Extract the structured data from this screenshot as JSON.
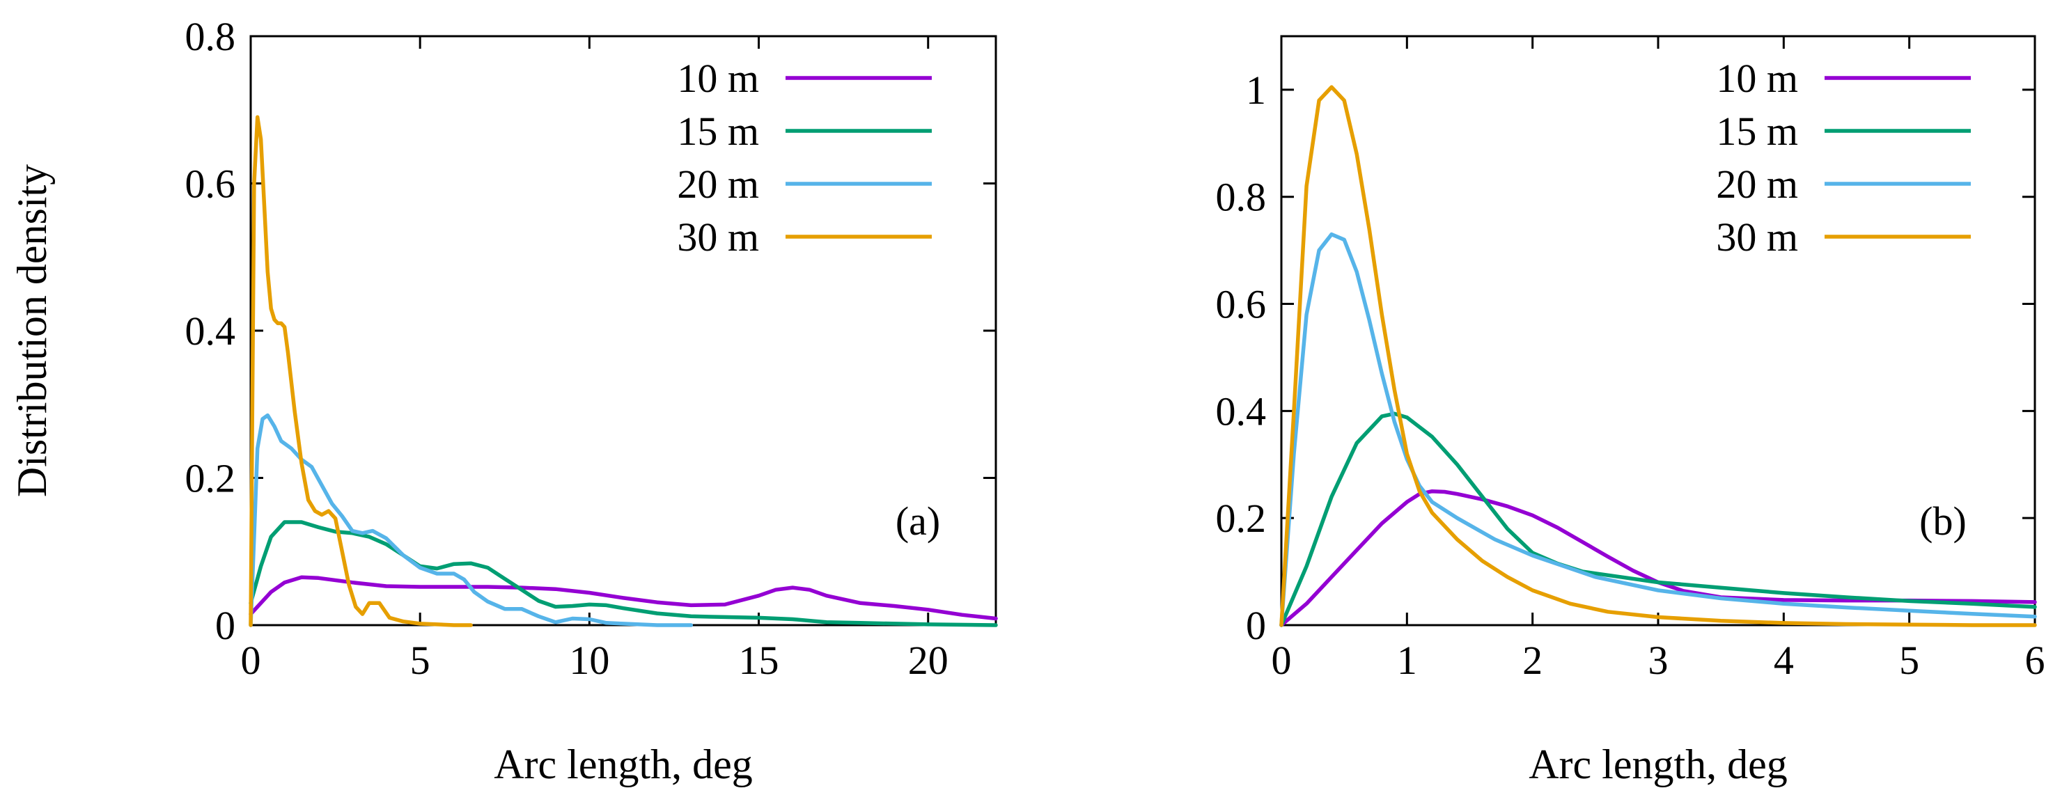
{
  "figure": {
    "ylabel": "Distribution density"
  },
  "colors": {
    "10 m": "#9400d3",
    "15 m": "#009e73",
    "20 m": "#56b4e9",
    "30 m": "#e69f00"
  },
  "chart_data": [
    {
      "type": "line",
      "panel": "(a)",
      "xlabel": "Arc length, deg",
      "ylabel": "Distribution density",
      "xlim": [
        0,
        22
      ],
      "ylim": [
        0,
        0.8
      ],
      "xticks": [
        0,
        5,
        10,
        15,
        20
      ],
      "yticks": [
        0,
        0.2,
        0.4,
        0.6,
        0.8
      ],
      "xtick_labels": [
        "0",
        "5",
        "10",
        "15",
        "20"
      ],
      "ytick_labels": [
        "0",
        "0.2",
        "0.4",
        "0.6",
        "0.8"
      ],
      "legend_position": "top-right",
      "series": [
        {
          "name": "10 m",
          "color": "#9400d3",
          "x": [
            0,
            0.3,
            0.6,
            1.0,
            1.5,
            2.0,
            3.0,
            4.0,
            5.0,
            6.0,
            7.0,
            8.0,
            9.0,
            10.0,
            11.0,
            12.0,
            13.0,
            14.0,
            15.0,
            15.5,
            16.0,
            16.5,
            17.0,
            18.0,
            19.0,
            20.0,
            21.0,
            22.0
          ],
          "y": [
            0.015,
            0.03,
            0.045,
            0.058,
            0.065,
            0.064,
            0.058,
            0.053,
            0.052,
            0.052,
            0.052,
            0.051,
            0.049,
            0.044,
            0.037,
            0.031,
            0.027,
            0.028,
            0.04,
            0.048,
            0.051,
            0.048,
            0.04,
            0.03,
            0.026,
            0.021,
            0.014,
            0.009
          ]
        },
        {
          "name": "15 m",
          "color": "#009e73",
          "x": [
            0,
            0.3,
            0.6,
            1.0,
            1.5,
            2.0,
            2.5,
            3.0,
            3.5,
            4.0,
            4.5,
            5.0,
            5.5,
            6.0,
            6.5,
            7.0,
            7.5,
            8.0,
            8.5,
            9.0,
            9.5,
            10.0,
            10.5,
            11.0,
            12.0,
            13.0,
            14.0,
            15.0,
            16.0,
            17.0,
            18.0,
            20.0,
            22.0
          ],
          "y": [
            0.03,
            0.08,
            0.12,
            0.14,
            0.14,
            0.133,
            0.127,
            0.125,
            0.12,
            0.11,
            0.095,
            0.08,
            0.077,
            0.083,
            0.084,
            0.078,
            0.063,
            0.048,
            0.033,
            0.025,
            0.026,
            0.028,
            0.027,
            0.023,
            0.016,
            0.012,
            0.011,
            0.01,
            0.008,
            0.004,
            0.003,
            0.001,
            0.0
          ]
        },
        {
          "name": "20 m",
          "color": "#56b4e9",
          "x": [
            0,
            0.1,
            0.2,
            0.35,
            0.5,
            0.7,
            0.9,
            1.2,
            1.5,
            1.8,
            2.1,
            2.4,
            2.7,
            3.0,
            3.3,
            3.6,
            4.0,
            4.5,
            5.0,
            5.5,
            6.0,
            6.3,
            6.6,
            7.0,
            7.5,
            8.0,
            8.5,
            9.0,
            9.5,
            10.0,
            10.5,
            11.0,
            12.0,
            13.0
          ],
          "y": [
            0.0,
            0.12,
            0.24,
            0.28,
            0.285,
            0.27,
            0.25,
            0.24,
            0.225,
            0.215,
            0.19,
            0.165,
            0.148,
            0.128,
            0.125,
            0.128,
            0.118,
            0.095,
            0.078,
            0.07,
            0.07,
            0.062,
            0.045,
            0.032,
            0.022,
            0.022,
            0.012,
            0.004,
            0.009,
            0.008,
            0.003,
            0.002,
            0.0,
            0.0
          ]
        },
        {
          "name": "30 m",
          "color": "#e69f00",
          "x": [
            0,
            0.05,
            0.1,
            0.2,
            0.3,
            0.4,
            0.5,
            0.6,
            0.7,
            0.8,
            0.9,
            1.0,
            1.1,
            1.3,
            1.5,
            1.7,
            1.9,
            2.1,
            2.3,
            2.5,
            2.7,
            2.9,
            3.1,
            3.3,
            3.5,
            3.8,
            4.1,
            4.5,
            5.0,
            5.5,
            6.0,
            6.5
          ],
          "y": [
            0.0,
            0.3,
            0.6,
            0.69,
            0.66,
            0.57,
            0.48,
            0.43,
            0.415,
            0.41,
            0.41,
            0.405,
            0.37,
            0.29,
            0.22,
            0.17,
            0.155,
            0.15,
            0.155,
            0.145,
            0.1,
            0.055,
            0.025,
            0.015,
            0.03,
            0.03,
            0.01,
            0.005,
            0.002,
            0.001,
            0.0,
            0.0
          ]
        }
      ]
    },
    {
      "type": "line",
      "panel": "(b)",
      "xlabel": "Arc length, deg",
      "ylabel": "",
      "xlim": [
        0,
        6
      ],
      "ylim": [
        0,
        1.1
      ],
      "xticks": [
        0,
        1,
        2,
        3,
        4,
        5,
        6
      ],
      "yticks": [
        0,
        0.2,
        0.4,
        0.6,
        0.8,
        1.0
      ],
      "xtick_labels": [
        "0",
        "1",
        "2",
        "3",
        "4",
        "5",
        "6"
      ],
      "ytick_labels": [
        "0",
        "0.2",
        "0.4",
        "0.6",
        "0.8",
        "1"
      ],
      "legend_position": "top-right",
      "series": [
        {
          "name": "10 m",
          "color": "#9400d3",
          "x": [
            0,
            0.2,
            0.4,
            0.6,
            0.8,
            1.0,
            1.1,
            1.2,
            1.3,
            1.4,
            1.6,
            1.8,
            2.0,
            2.2,
            2.4,
            2.6,
            2.8,
            3.0,
            3.2,
            3.5,
            4.0,
            4.5,
            5.0,
            5.5,
            6.0
          ],
          "y": [
            0.0,
            0.04,
            0.09,
            0.14,
            0.19,
            0.23,
            0.245,
            0.25,
            0.249,
            0.245,
            0.235,
            0.222,
            0.205,
            0.182,
            0.155,
            0.128,
            0.102,
            0.08,
            0.064,
            0.052,
            0.047,
            0.046,
            0.046,
            0.045,
            0.043
          ]
        },
        {
          "name": "15 m",
          "color": "#009e73",
          "x": [
            0,
            0.2,
            0.4,
            0.6,
            0.8,
            0.9,
            1.0,
            1.2,
            1.4,
            1.6,
            1.8,
            2.0,
            2.2,
            2.4,
            2.7,
            3.0,
            3.5,
            4.0,
            4.5,
            5.0,
            5.5,
            6.0
          ],
          "y": [
            0.0,
            0.11,
            0.24,
            0.34,
            0.39,
            0.395,
            0.388,
            0.352,
            0.3,
            0.24,
            0.18,
            0.135,
            0.115,
            0.1,
            0.09,
            0.08,
            0.07,
            0.06,
            0.052,
            0.045,
            0.04,
            0.034
          ]
        },
        {
          "name": "20 m",
          "color": "#56b4e9",
          "x": [
            0,
            0.1,
            0.2,
            0.3,
            0.4,
            0.5,
            0.6,
            0.7,
            0.8,
            0.9,
            1.0,
            1.1,
            1.2,
            1.4,
            1.7,
            2.0,
            2.5,
            3.0,
            3.5,
            4.0,
            4.5,
            5.0,
            5.5,
            6.0
          ],
          "y": [
            0.0,
            0.32,
            0.58,
            0.7,
            0.73,
            0.72,
            0.66,
            0.57,
            0.47,
            0.38,
            0.31,
            0.26,
            0.23,
            0.2,
            0.16,
            0.13,
            0.09,
            0.065,
            0.05,
            0.04,
            0.033,
            0.027,
            0.021,
            0.016
          ]
        },
        {
          "name": "30 m",
          "color": "#e69f00",
          "x": [
            0,
            0.1,
            0.2,
            0.3,
            0.4,
            0.5,
            0.6,
            0.7,
            0.8,
            0.9,
            1.0,
            1.1,
            1.2,
            1.4,
            1.6,
            1.8,
            2.0,
            2.3,
            2.6,
            3.0,
            3.5,
            4.0,
            4.5,
            5.0,
            5.5,
            6.0
          ],
          "y": [
            0.0,
            0.4,
            0.82,
            0.98,
            1.005,
            0.98,
            0.88,
            0.74,
            0.58,
            0.44,
            0.32,
            0.25,
            0.21,
            0.16,
            0.12,
            0.09,
            0.065,
            0.04,
            0.025,
            0.015,
            0.008,
            0.004,
            0.002,
            0.001,
            0.0,
            0.0
          ]
        }
      ]
    }
  ]
}
